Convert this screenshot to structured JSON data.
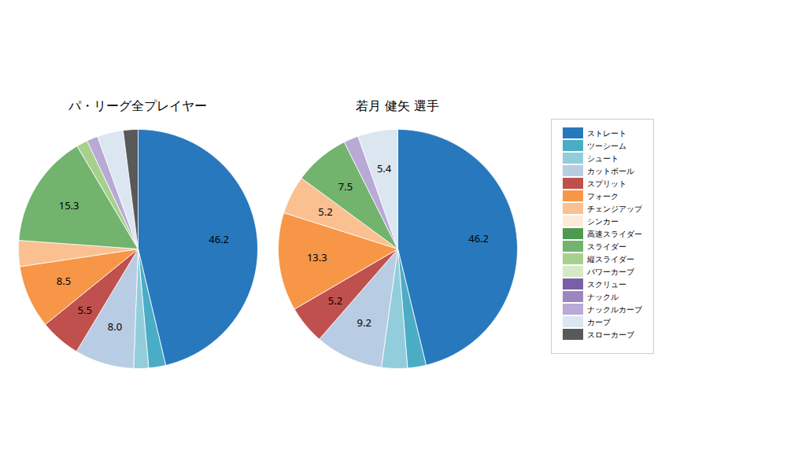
{
  "chart_data": [
    {
      "type": "pie",
      "title": "パ・リーグ全プレイヤー",
      "categories": [
        "ストレート",
        "ツーシーム",
        "シュート",
        "カットボール",
        "スプリット",
        "フォーク",
        "チェンジアップ",
        "シンカー",
        "高速スライダー",
        "スライダー",
        "縦スライダー",
        "パワーカーブ",
        "スクリュー",
        "ナックル",
        "ナックルカーブ",
        "カーブ",
        "スローカーブ"
      ],
      "values": [
        46.2,
        2.3,
        2.0,
        8.0,
        5.5,
        8.5,
        3.5,
        0,
        0,
        15.3,
        1.5,
        0,
        0,
        0,
        1.5,
        3.5,
        2.0
      ],
      "value_labels": [
        "46.2",
        null,
        null,
        "8.0",
        "5.5",
        "8.5",
        null,
        null,
        null,
        "15.3",
        null,
        null,
        null,
        null,
        null,
        null,
        null
      ],
      "colors": [
        "#2878bd",
        "#4bacc6",
        "#92cddc",
        "#b8cce4",
        "#c0504d",
        "#f79646",
        "#fac090",
        "#fde9d9",
        "#4e9a51",
        "#72b36e",
        "#a8d08d",
        "#d6e9c6",
        "#7b5ea7",
        "#9b86c0",
        "#b8a9d5",
        "#dce6f1",
        "#595959"
      ],
      "data_labels": true,
      "legend": "right"
    },
    {
      "type": "pie",
      "title": "若月 健矢  選手",
      "categories": [
        "ストレート",
        "ツーシーム",
        "シュート",
        "カットボール",
        "スプリット",
        "フォーク",
        "チェンジアップ",
        "シンカー",
        "高速スライダー",
        "スライダー",
        "縦スライダー",
        "パワーカーブ",
        "スクリュー",
        "ナックル",
        "ナックルカーブ",
        "カーブ",
        "スローカーブ"
      ],
      "values": [
        46.2,
        2.5,
        3.5,
        9.2,
        5.2,
        13.3,
        5.2,
        0,
        0,
        7.5,
        0,
        0,
        0,
        0,
        2.0,
        5.4,
        0
      ],
      "value_labels": [
        "46.2",
        null,
        null,
        "9.2",
        "5.2",
        "13.3",
        "5.2",
        null,
        null,
        "7.5",
        null,
        null,
        null,
        null,
        null,
        "5.4",
        null
      ],
      "colors": [
        "#2878bd",
        "#4bacc6",
        "#92cddc",
        "#b8cce4",
        "#c0504d",
        "#f79646",
        "#fac090",
        "#fde9d9",
        "#4e9a51",
        "#72b36e",
        "#a8d08d",
        "#d6e9c6",
        "#7b5ea7",
        "#9b86c0",
        "#b8a9d5",
        "#dce6f1",
        "#595959"
      ],
      "data_labels": true
    }
  ]
}
